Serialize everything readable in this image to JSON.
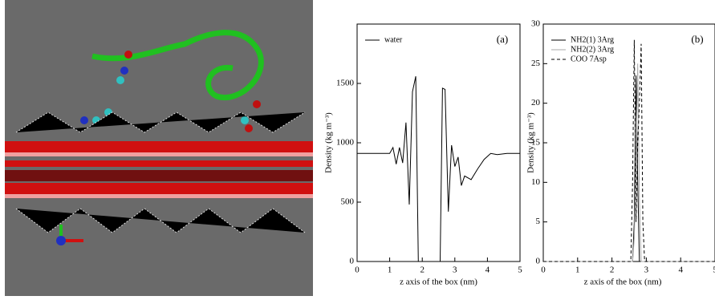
{
  "chart_data": [
    {
      "type": "line",
      "panel_label": "(a)",
      "xlabel": "z axis of the box (nm)",
      "ylabel": "Density (kg m⁻³)",
      "xlim": [
        0,
        5
      ],
      "xticks": [
        0,
        1,
        2,
        3,
        4,
        5
      ],
      "ylim": [
        0,
        2000
      ],
      "yticks": [
        0,
        500,
        1000,
        1500
      ],
      "legend": "upper left",
      "x": [
        0,
        0.5,
        1.0,
        1.1,
        1.2,
        1.3,
        1.4,
        1.5,
        1.6,
        1.7,
        1.8,
        1.88,
        2.55,
        2.62,
        2.7,
        2.8,
        2.9,
        3.0,
        3.1,
        3.2,
        3.3,
        3.5,
        3.7,
        3.9,
        4.1,
        4.3,
        4.6,
        5.0
      ],
      "series": [
        {
          "name": "water",
          "color": "#000000",
          "linestyle": "solid",
          "values": [
            910,
            910,
            910,
            960,
            820,
            960,
            830,
            1170,
            480,
            1430,
            1560,
            0,
            0,
            1460,
            1450,
            420,
            980,
            800,
            880,
            640,
            720,
            690,
            780,
            860,
            910,
            900,
            910,
            910
          ]
        }
      ]
    },
    {
      "type": "line",
      "panel_label": "(b)",
      "xlabel": "z axis of the box (nm)",
      "ylabel": "Density (kg m⁻³)",
      "xlim": [
        0,
        5
      ],
      "xticks": [
        0,
        1,
        2,
        3,
        4,
        5
      ],
      "ylim": [
        0,
        30
      ],
      "yticks": [
        0,
        5,
        10,
        15,
        20,
        25,
        30
      ],
      "legend": "upper left",
      "x": [
        0,
        2.55,
        2.6,
        2.65,
        2.7,
        2.75,
        2.8,
        2.85,
        2.9,
        2.95,
        5
      ],
      "series": [
        {
          "name": "NH2(1) 3Arg",
          "color": "#000000",
          "linestyle": "solid",
          "values": [
            0,
            0,
            0,
            5,
            23.5,
            10,
            0,
            0,
            0,
            0,
            0
          ]
        },
        {
          "name": "NH2(2) 3Arg",
          "color": "#aaaaaa",
          "linestyle": "solid",
          "values": [
            0,
            0,
            0,
            3,
            12,
            25,
            8,
            0,
            0,
            0,
            0
          ]
        },
        {
          "name": "COO  7Asp",
          "color": "#000000",
          "linestyle": "dashed",
          "values": [
            0,
            0,
            10,
            28,
            5,
            15,
            20,
            27.5,
            5,
            0,
            0
          ]
        }
      ]
    }
  ]
}
